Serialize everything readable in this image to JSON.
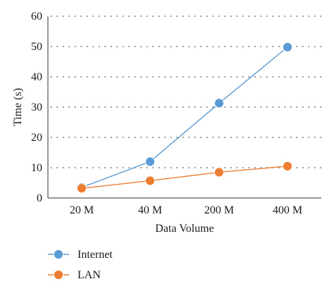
{
  "chart_data": {
    "type": "line",
    "categories": [
      "20 M",
      "40 M",
      "200 M",
      "400 M"
    ],
    "xlabel": "Data Volume",
    "ylabel": "Time (s)",
    "ylim": [
      0,
      60
    ],
    "yticks": [
      0,
      10,
      20,
      30,
      40,
      50,
      60
    ],
    "grid": true,
    "legend_position": "bottom-left",
    "series": [
      {
        "name": "Internet",
        "color": "#5B9BD5",
        "values": [
          3.5,
          12,
          31.3,
          49.8
        ]
      },
      {
        "name": "LAN",
        "color": "#ED7D31",
        "values": [
          3.2,
          5.7,
          8.5,
          10.5
        ]
      }
    ]
  }
}
